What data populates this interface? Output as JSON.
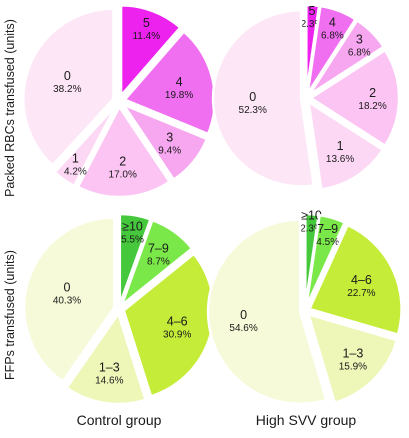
{
  "row_labels": [
    "Packed RBCs transfused (units)",
    "FFPs transfused (units)"
  ],
  "column_labels": [
    "Control group",
    "High SVV group"
  ],
  "chart_data": [
    {
      "type": "pie",
      "row": "Packed RBCs transfused (units)",
      "group": "Control group",
      "slices": [
        {
          "label": "5",
          "percent": "11.4%",
          "value": 11.4,
          "color": "#ee22ee"
        },
        {
          "label": "4",
          "percent": "19.8%",
          "value": 19.8,
          "color": "#f06ef0"
        },
        {
          "label": "3",
          "percent": "9.4%",
          "value": 9.4,
          "color": "#f7a6f0"
        },
        {
          "label": "2",
          "percent": "17.0%",
          "value": 17.0,
          "color": "#fbc4f3"
        },
        {
          "label": "1",
          "percent": "4.2%",
          "value": 4.2,
          "color": "#fcd8f5"
        },
        {
          "label": "0",
          "percent": "38.2%",
          "value": 38.2,
          "color": "#fde6f6"
        }
      ]
    },
    {
      "type": "pie",
      "row": "Packed RBCs transfused (units)",
      "group": "High SVV group",
      "slices": [
        {
          "label": "5",
          "percent": "2.3%",
          "value": 2.3,
          "color": "#ee22ee"
        },
        {
          "label": "4",
          "percent": "6.8%",
          "value": 6.8,
          "color": "#f06ef0"
        },
        {
          "label": "3",
          "percent": "6.8%",
          "value": 6.8,
          "color": "#f7a6f0"
        },
        {
          "label": "2",
          "percent": "18.2%",
          "value": 18.2,
          "color": "#fbc4f3"
        },
        {
          "label": "1",
          "percent": "13.6%",
          "value": 13.6,
          "color": "#fcd8f5"
        },
        {
          "label": "0",
          "percent": "52.3%",
          "value": 52.3,
          "color": "#fde6f6"
        }
      ]
    },
    {
      "type": "pie",
      "row": "FFPs transfused (units)",
      "group": "Control group",
      "slices": [
        {
          "label": "≥10",
          "percent": "5.5%",
          "value": 5.5,
          "color": "#46c83c"
        },
        {
          "label": "7–9",
          "percent": "8.7%",
          "value": 8.7,
          "color": "#7be84a"
        },
        {
          "label": "4–6",
          "percent": "30.9%",
          "value": 30.9,
          "color": "#c6ec3a"
        },
        {
          "label": "1–3",
          "percent": "14.6%",
          "value": 14.6,
          "color": "#eef6b8"
        },
        {
          "label": "0",
          "percent": "40.3%",
          "value": 40.3,
          "color": "#f6fad8"
        }
      ]
    },
    {
      "type": "pie",
      "row": "FFPs transfused (units)",
      "group": "High SVV group",
      "slices": [
        {
          "label": "≥10",
          "percent": "2.3%",
          "value": 2.3,
          "color": "#46c83c"
        },
        {
          "label": "7–9",
          "percent": "4.5%",
          "value": 4.5,
          "color": "#7be84a"
        },
        {
          "label": "4–6",
          "percent": "22.7%",
          "value": 22.7,
          "color": "#c6ec3a"
        },
        {
          "label": "1–3",
          "percent": "15.9%",
          "value": 15.9,
          "color": "#eef6b8"
        },
        {
          "label": "0",
          "percent": "54.6%",
          "value": 54.6,
          "color": "#f6fad8"
        }
      ]
    }
  ]
}
